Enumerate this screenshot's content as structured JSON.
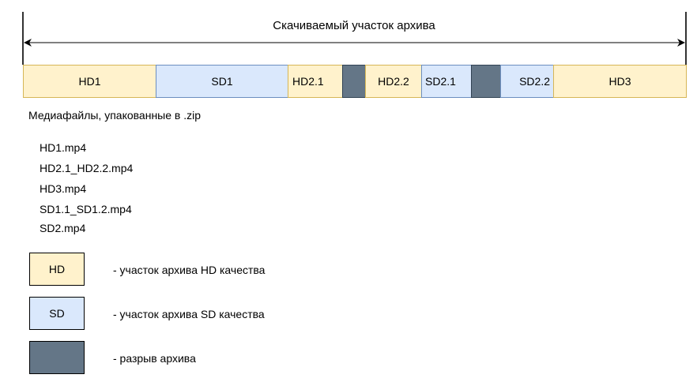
{
  "title": "Скачиваемый участок архива",
  "colors": {
    "hd_fill": "#fff2cc",
    "hd_border": "#d6b656",
    "sd_fill": "#dae8fc",
    "sd_border": "#6c8ebf",
    "gap_fill": "#647687",
    "gap_border": "#314354"
  },
  "segments": [
    {
      "type": "hd",
      "label": "HD1"
    },
    {
      "type": "sd",
      "label": "SD1"
    },
    {
      "type": "hd",
      "label": "HD2.1"
    },
    {
      "type": "gap",
      "label": ""
    },
    {
      "type": "hd",
      "label": "HD2.2"
    },
    {
      "type": "sd",
      "label": "SD2.1"
    },
    {
      "type": "gap",
      "label": ""
    },
    {
      "type": "sd",
      "label": "SD2.2"
    },
    {
      "type": "hd",
      "label": "HD3"
    }
  ],
  "files_heading": "Медиафайлы, упакованные в .zip",
  "files": [
    "HD1.mp4",
    "HD2.1_HD2.2.mp4",
    "HD3.mp4",
    "SD1.1_SD1.2.mp4",
    "SD2.mp4"
  ],
  "legend": [
    {
      "box": "HD",
      "text": "- участок архива HD качества"
    },
    {
      "box": "SD",
      "text": "- участок архива SD качества"
    },
    {
      "box": "",
      "text": "- разрыв архива"
    }
  ]
}
